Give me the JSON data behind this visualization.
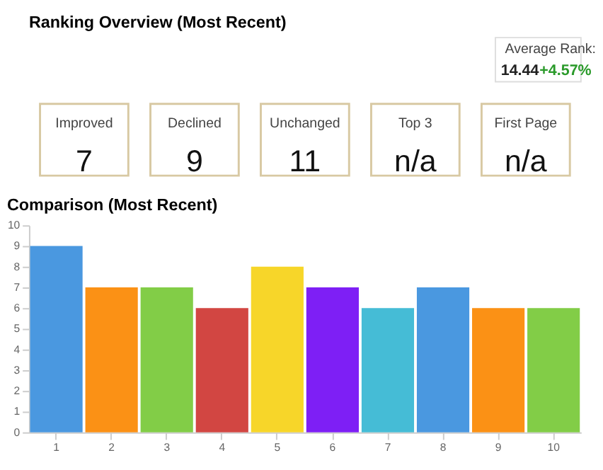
{
  "chart_data": [
    {
      "type": "other",
      "title": "Ranking Overview (Most Recent)",
      "categories": [
        "Improved",
        "Declined",
        "Unchanged",
        "Top 3",
        "First Page"
      ],
      "values": [
        7,
        9,
        11,
        null,
        null
      ],
      "value_labels": [
        "7",
        "9",
        "11",
        "n/a",
        "n/a"
      ],
      "annotations": [
        "Average Rank:",
        "14.44",
        "+4.57%"
      ]
    },
    {
      "type": "bar",
      "title": "Comparison (Most Recent)",
      "categories": [
        "1",
        "2",
        "3",
        "4",
        "5",
        "6",
        "7",
        "8",
        "9",
        "10"
      ],
      "values": [
        9,
        7,
        7,
        6,
        8,
        7,
        6,
        7,
        6,
        6
      ],
      "colors": [
        "#4a98e0",
        "#fb9115",
        "#82cd47",
        "#d24642",
        "#f7d629",
        "#7e1ff5",
        "#45bcd6",
        "#4a98e0",
        "#fb9115",
        "#82cd47"
      ],
      "ylim": [
        0,
        10
      ],
      "yticks": [
        0,
        1,
        2,
        3,
        4,
        5,
        6,
        7,
        8,
        9,
        10
      ],
      "grid": false,
      "legend": false
    }
  ]
}
